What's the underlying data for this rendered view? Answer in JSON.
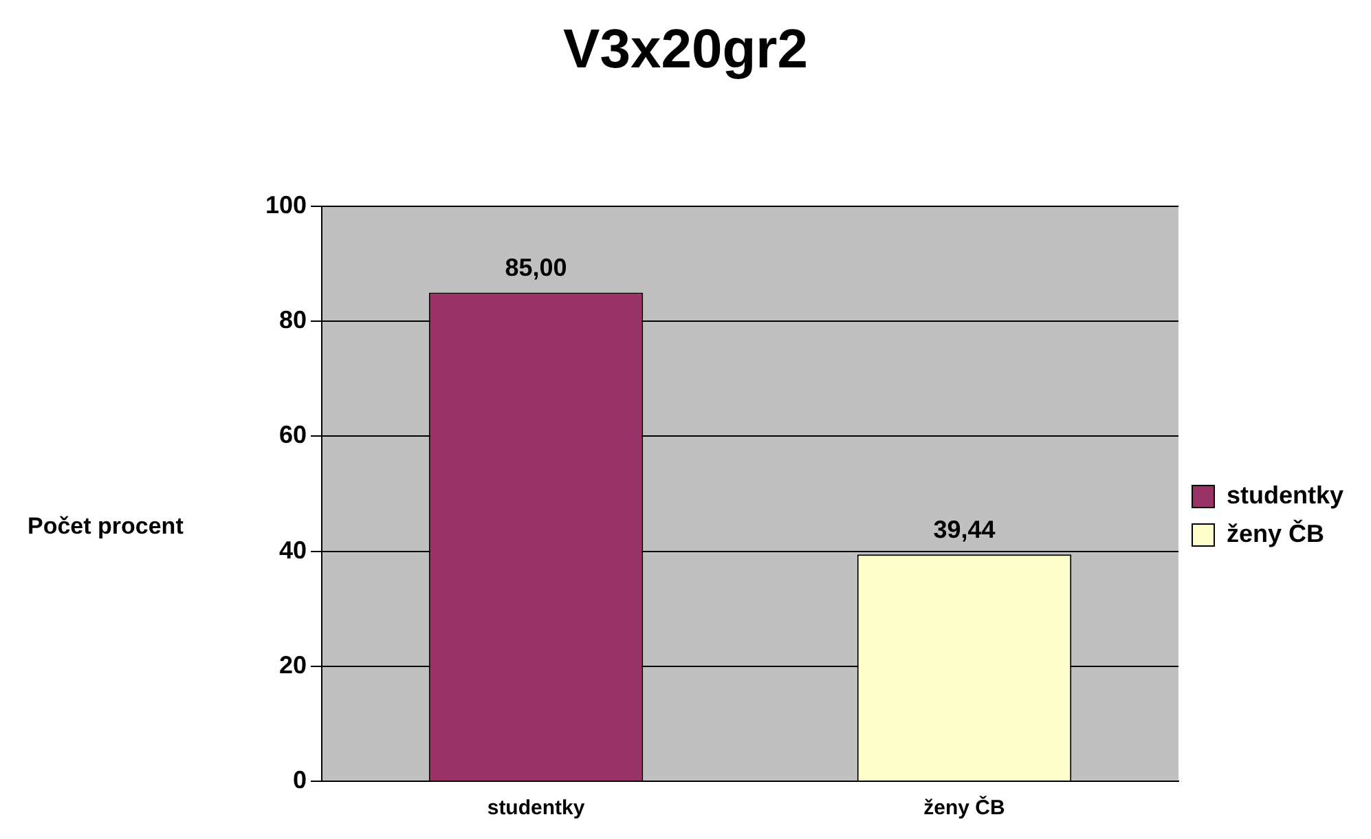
{
  "chart_data": {
    "type": "bar",
    "title": "V3x20gr2",
    "ylabel": "Počet procent",
    "categories": [
      "studentky",
      "ženy ČB"
    ],
    "series": [
      {
        "name": "studentky",
        "color": "#993366",
        "values": [
          85,
          null
        ],
        "value_labels": [
          "85,00",
          null
        ]
      },
      {
        "name": "ženy ČB",
        "color": "#ffffcc",
        "values": [
          null,
          39.44
        ],
        "value_labels": [
          null,
          "39,44"
        ]
      }
    ],
    "ylim": [
      0,
      100
    ],
    "yticks": [
      0,
      20,
      40,
      60,
      80,
      100
    ],
    "grid": "y",
    "legend": "right"
  }
}
